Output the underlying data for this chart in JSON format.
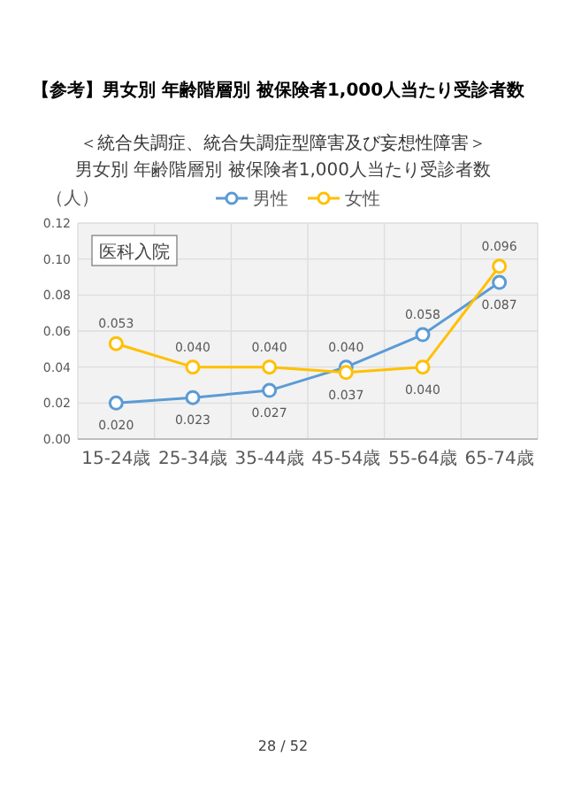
{
  "chart_data": {
    "type": "line",
    "title": "【参考】男女別 年齢階層別 被保険者1,000人当たり受診者数",
    "subtitle": "＜統合失調症、統合失調症型障害及び妄想性障害＞",
    "ylabel": "（人）",
    "annotations": [
      "男女別 年齢階層別 被保険者1,000人当たり受診者数",
      "医科入院",
      "28 / 52"
    ],
    "categories": [
      "15-24歳",
      "25-34歳",
      "35-44歳",
      "45-54歳",
      "55-64歳",
      "65-74歳"
    ],
    "series": [
      {
        "name": "男性",
        "color": "#5b9bd5",
        "values": [
          0.02,
          0.023,
          0.027,
          0.04,
          0.058,
          0.087
        ],
        "value_labels": [
          "0.020",
          "0.023",
          "0.027",
          "0.040",
          "0.058",
          "0.087"
        ]
      },
      {
        "name": "女性",
        "color": "#ffc000",
        "values": [
          0.053,
          0.04,
          0.04,
          0.037,
          0.04,
          0.096
        ],
        "value_labels": [
          "0.053",
          "0.040",
          "0.040",
          "0.037",
          "0.040",
          "0.096"
        ]
      }
    ],
    "ylim": [
      0,
      0.12
    ],
    "yticks": [
      {
        "value": 0,
        "label": "0.00"
      },
      {
        "value": 0.02,
        "label": "0.02"
      },
      {
        "value": 0.04,
        "label": "0.04"
      },
      {
        "value": 0.06,
        "label": "0.06"
      },
      {
        "value": 0.08,
        "label": "0.08"
      },
      {
        "value": 0.1,
        "label": "0.10"
      },
      {
        "value": 0.12,
        "label": "0.12"
      }
    ],
    "grid": true,
    "legend": "top",
    "marker": "circle",
    "line_style": "solid"
  }
}
